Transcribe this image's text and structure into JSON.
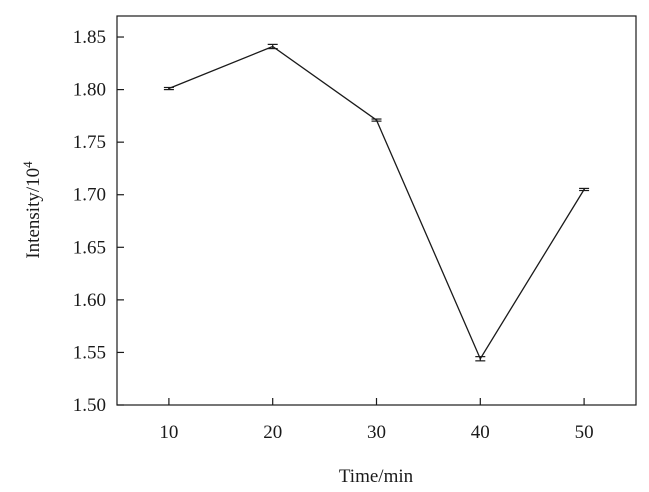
{
  "chart_data": {
    "type": "line",
    "title": "",
    "xlabel": "Time/min",
    "ylabel_main": "Intensity/10",
    "ylabel_sup": "4",
    "x": [
      10,
      20,
      30,
      40,
      50
    ],
    "x_ticks": [
      "10",
      "20",
      "30",
      "40",
      "50"
    ],
    "xlim": [
      5,
      55
    ],
    "ylim": [
      1.5,
      1.87
    ],
    "y_ticks": [
      "1.50",
      "1.55",
      "1.60",
      "1.65",
      "1.70",
      "1.75",
      "1.80",
      "1.85"
    ],
    "series": [
      {
        "values": [
          1.801,
          1.841,
          1.771,
          1.544,
          1.705
        ],
        "error": [
          0.001,
          0.002,
          0.001,
          0.002,
          0.001
        ],
        "color": "#1a1a1a"
      }
    ],
    "grid": false,
    "legend": "none"
  }
}
